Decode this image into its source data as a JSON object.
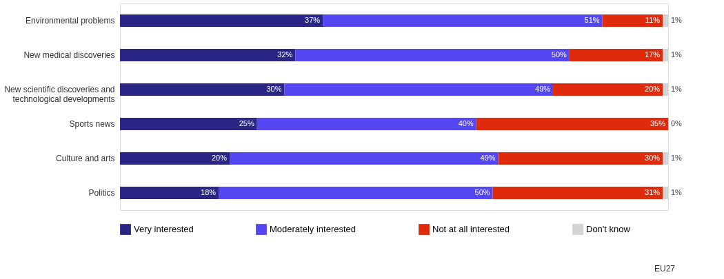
{
  "chart_data": {
    "type": "bar",
    "orientation": "horizontal",
    "stacked": true,
    "legend": "bottom",
    "grid": false,
    "categories": [
      "Environmental problems",
      "New medical discoveries",
      "New scientific discoveries and\ntechnological developments",
      "Sports news",
      "Culture and arts",
      "Politics"
    ],
    "series": [
      {
        "name": "Very interested",
        "color": "#2b2585",
        "values": [
          37,
          32,
          30,
          25,
          20,
          18
        ],
        "value_labels": [
          "37%",
          "32%",
          "30%",
          "25%",
          "20%",
          "18%"
        ]
      },
      {
        "name": "Moderately interested",
        "color": "#5446f0",
        "values": [
          51,
          50,
          49,
          40,
          49,
          50
        ],
        "value_labels": [
          "51%",
          "50%",
          "49%",
          "40%",
          "49%",
          "50%"
        ]
      },
      {
        "name": "Not at all interested",
        "color": "#e02a0c",
        "values": [
          11,
          17,
          20,
          35,
          30,
          31
        ],
        "value_labels": [
          "11%",
          "17%",
          "20%",
          "35%",
          "30%",
          "31%"
        ]
      },
      {
        "name": "Don't know",
        "color": "#d4d4d4",
        "values": [
          1,
          1,
          1,
          0,
          1,
          1
        ],
        "value_labels": [
          "1%",
          "1%",
          "1%",
          "0%",
          "1%",
          "1%"
        ]
      }
    ],
    "annotations": [
      "EU27"
    ]
  }
}
